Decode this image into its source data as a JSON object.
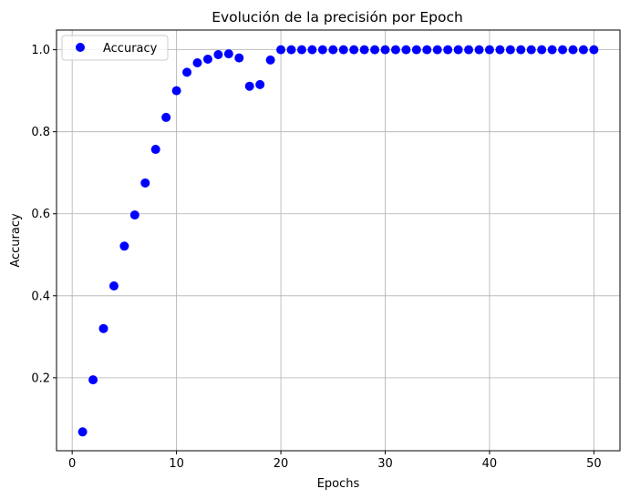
{
  "chart_data": {
    "type": "scatter",
    "title": "Evolución de la precisión por Epoch",
    "xlabel": "Epochs",
    "ylabel": "Accuracy",
    "xlim": [
      -1.5,
      52.5
    ],
    "ylim": [
      0.022,
      1.048
    ],
    "xticks": [
      0,
      10,
      20,
      30,
      40,
      50
    ],
    "yticks": [
      0.2,
      0.4,
      0.6,
      0.8,
      1.0
    ],
    "xtick_labels": [
      "0",
      "10",
      "20",
      "30",
      "40",
      "50"
    ],
    "ytick_labels": [
      "0.2",
      "0.4",
      "0.6",
      "0.8",
      "1.0"
    ],
    "grid": true,
    "legend_position": "upper left",
    "series": [
      {
        "name": "Accuracy",
        "color": "#0000ff",
        "x": [
          1,
          2,
          3,
          4,
          5,
          6,
          7,
          8,
          9,
          10,
          11,
          12,
          13,
          14,
          15,
          16,
          17,
          18,
          19,
          20,
          21,
          22,
          23,
          24,
          25,
          26,
          27,
          28,
          29,
          30,
          31,
          32,
          33,
          34,
          35,
          36,
          37,
          38,
          39,
          40,
          41,
          42,
          43,
          44,
          45,
          46,
          47,
          48,
          49,
          50
        ],
        "y": [
          0.068,
          0.195,
          0.32,
          0.424,
          0.521,
          0.597,
          0.675,
          0.757,
          0.835,
          0.9,
          0.945,
          0.968,
          0.977,
          0.988,
          0.99,
          0.98,
          0.911,
          0.915,
          0.975,
          1.0,
          1.0,
          1.0,
          1.0,
          1.0,
          1.0,
          1.0,
          1.0,
          1.0,
          1.0,
          1.0,
          1.0,
          1.0,
          1.0,
          1.0,
          1.0,
          1.0,
          1.0,
          1.0,
          1.0,
          1.0,
          1.0,
          1.0,
          1.0,
          1.0,
          1.0,
          1.0,
          1.0,
          1.0,
          1.0,
          1.0
        ]
      }
    ]
  }
}
